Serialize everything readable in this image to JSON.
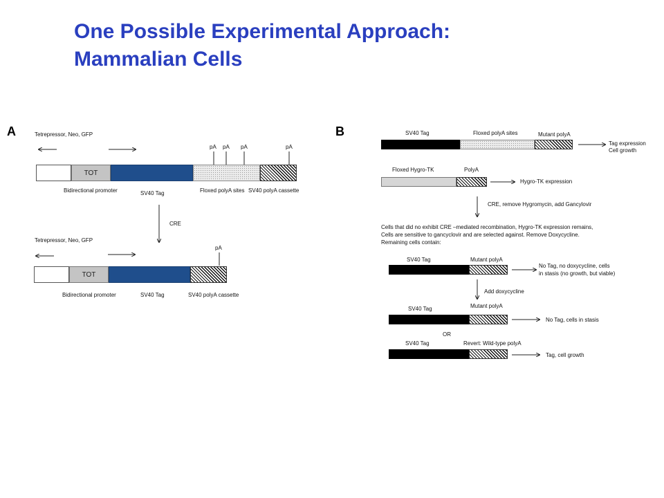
{
  "title": {
    "line1": "One Possible Experimental Approach:",
    "line2": "Mammalian Cells"
  },
  "panelA": {
    "letter": "A",
    "constructs": [
      {
        "top_label": "Tetrepressor, Neo, GFP",
        "tot": "TOT",
        "pA": [
          "pA",
          "pA",
          "pA",
          "pA"
        ],
        "bottom_labels": {
          "promoter": "Bidirectional promoter",
          "tag": "SV40 Tag",
          "floxed": "Floxed polyA sites",
          "cassette": "SV40 polyA cassette"
        }
      },
      {
        "top_label": "Tetrepressor, Neo, GFP",
        "tot": "TOT",
        "pA": [
          "pA"
        ],
        "bottom_labels": {
          "promoter": "Bidirectional promoter",
          "tag": "SV40 Tag",
          "cassette": "SV40 polyA cassette"
        }
      }
    ],
    "step_label": "CRE"
  },
  "panelB": {
    "letter": "B",
    "row1": {
      "tag": "SV40 Tag",
      "floxed": "Floxed polyA sites",
      "mutant": "Mutant polyA",
      "result_line1": "Tag expression",
      "result_line2": "Cell growth"
    },
    "row2": {
      "hygro": "Floxed Hygro-TK",
      "polyA": "PolyA",
      "result": "Hygro-TK expression"
    },
    "step1": "CRE, remove Hygromycin, add Gancylovir",
    "paragraph": [
      "Cells that did no exhibit CRE –mediated recombination, Hygro-TK expression remains,",
      "Cells are sensitive to gancyclovir and are selected against.  Remove Doxycycline.",
      "Remaining cells contain:"
    ],
    "row3": {
      "tag": "SV40 Tag",
      "mutant": "Mutant polyA",
      "result_line1": "No Tag, no doxycycline, cells",
      "result_line2": "in stasis (no growth, but viable)"
    },
    "step2": "Add doxycycline",
    "row4": {
      "tag": "SV40 Tag",
      "mutant": "Mutant polyA",
      "result": "No Tag, cells in stasis"
    },
    "or": "OR",
    "row5": {
      "tag": "SV40 Tag",
      "revert": "Revert: Wild-type polyA",
      "result": "Tag, cell growth"
    }
  }
}
